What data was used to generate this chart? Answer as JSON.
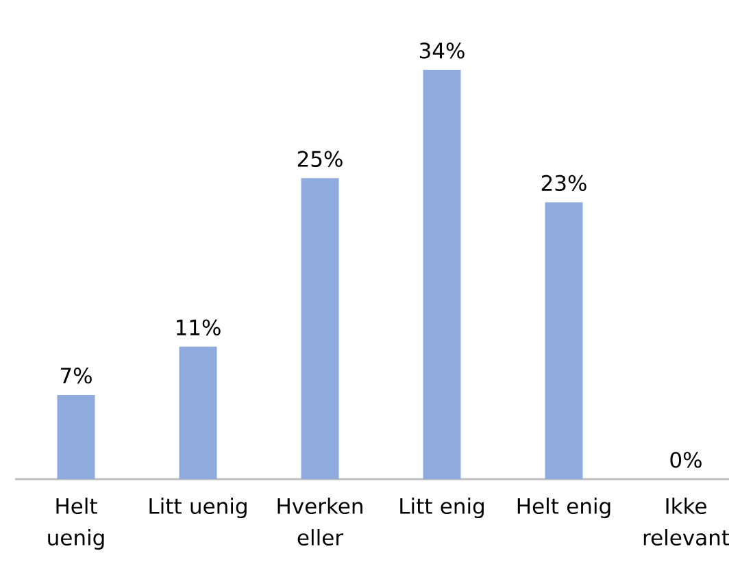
{
  "chart_data": {
    "type": "bar",
    "categories": [
      "Helt uenig",
      "Litt uenig",
      "Hverken eller",
      "Litt enig",
      "Helt enig",
      "Ikke relevant"
    ],
    "values": [
      7,
      11,
      25,
      34,
      23,
      0
    ],
    "value_labels": [
      "7%",
      "11%",
      "25%",
      "34%",
      "23%",
      "0%"
    ],
    "color": "#8faadc"
  }
}
